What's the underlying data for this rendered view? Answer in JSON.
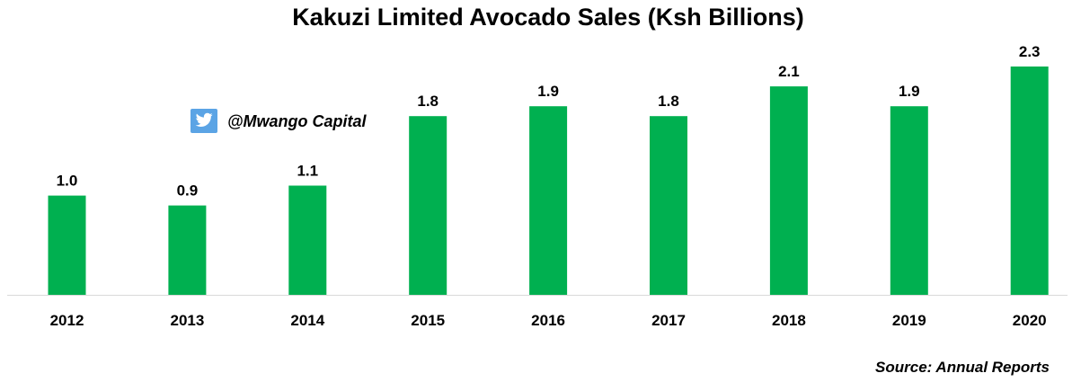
{
  "chart_data": {
    "type": "bar",
    "title": "Kakuzi Limited Avocado Sales (Ksh Billions)",
    "categories": [
      "2012",
      "2013",
      "2014",
      "2015",
      "2016",
      "2017",
      "2018",
      "2019",
      "2020"
    ],
    "values": [
      1.0,
      0.9,
      1.1,
      1.8,
      1.9,
      1.8,
      2.1,
      1.9,
      2.3
    ],
    "value_labels": [
      "1.0",
      "0.9",
      "1.1",
      "1.8",
      "1.9",
      "1.8",
      "2.1",
      "1.9",
      "2.3"
    ],
    "xlabel": "",
    "ylabel": "",
    "ylim": [
      0,
      2.3
    ],
    "grid": false,
    "bar_color": "#00b050",
    "axis_color": "#d9d9d9"
  },
  "watermark": {
    "handle": "@Mwango Capital",
    "icon": "twitter-bird-icon",
    "icon_color": "#5ba4e5"
  },
  "source": "Source: Annual Reports"
}
